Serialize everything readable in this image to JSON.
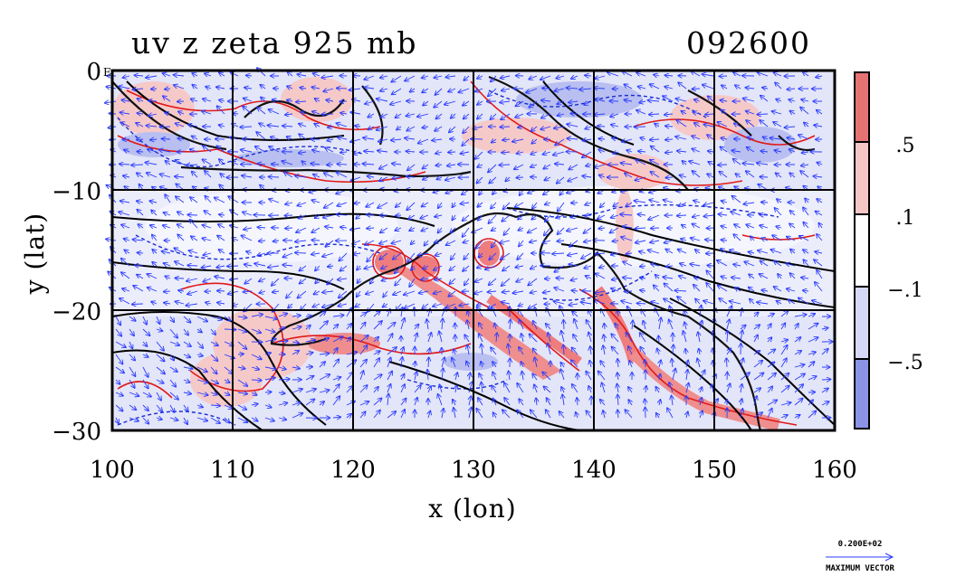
{
  "chart_data": {
    "type": "contour_vector_map",
    "title": "uv z zeta 925 mb",
    "time_label": "092600",
    "xlabel": "x (lon)",
    "ylabel": "y (lat)",
    "xlim": [
      100,
      160
    ],
    "ylim": [
      -30,
      0
    ],
    "x_ticks": [
      "100",
      "110",
      "120",
      "130",
      "140",
      "150",
      "160"
    ],
    "y_ticks": [
      "0",
      "−10",
      "−20",
      "−30"
    ],
    "y_ticks_suffix_top": "E",
    "grid": true,
    "colorbar": {
      "labels": [
        ".5",
        ".1",
        "−.1",
        "−.5"
      ],
      "colors": [
        "#e57373",
        "#f5c6c6",
        "#ffffff",
        "#d5d9f5",
        "#8a93e6"
      ]
    },
    "vector_key": {
      "value_label": "0.200E+02",
      "caption": "MAXIMUM VECTOR"
    },
    "colors": {
      "positive_strong": "#ef7d7d",
      "positive_weak": "#f8d2d2",
      "negative_weak": "#d9dcf6",
      "negative_strong": "#9ea6ea",
      "vector": "#2a3cff",
      "contour_red": "#e01a1a",
      "contour_blue": "#1a2cd0"
    }
  }
}
